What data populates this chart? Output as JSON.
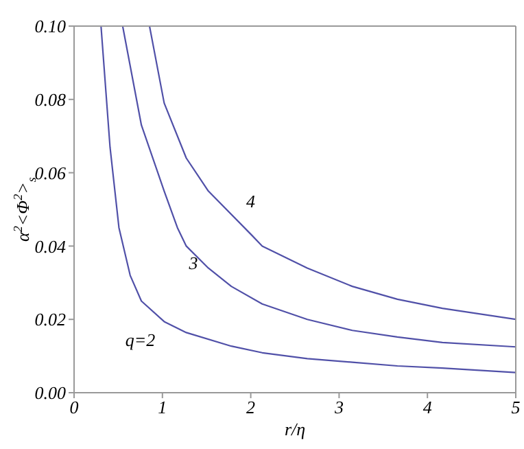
{
  "chart_data": {
    "type": "line",
    "xlabel": "r/η",
    "ylabel": "α$^{2}$<Φ$^{2}$>$_{s}$",
    "xlim": [
      0,
      5
    ],
    "xticks": [
      0,
      1,
      2,
      3,
      4,
      5
    ],
    "ylim": [
      0,
      0.1
    ],
    "yticks": [
      {
        "value": 0,
        "label": "0.00"
      },
      {
        "value": 0.02,
        "label": "0.02"
      },
      {
        "value": 0.04,
        "label": "0.04"
      },
      {
        "value": 0.06,
        "label": "0.06"
      },
      {
        "value": 0.08,
        "label": "0.08"
      },
      {
        "value": 0.1,
        "label": "0.10"
      }
    ],
    "legend": false,
    "marker": "none",
    "line_style": "solid",
    "series": [
      {
        "name": "q=2",
        "color": "#5050a8",
        "x": [
          0.305,
          0.407,
          0.508,
          0.635,
          0.762,
          1.02,
          1.27,
          1.78,
          2.13,
          2.64,
          3.15,
          3.66,
          4.17,
          5
        ],
        "values": [
          0.1,
          0.067,
          0.045,
          0.032,
          0.025,
          0.0194,
          0.0164,
          0.0127,
          0.0109,
          0.0093,
          0.0083,
          0.0073,
          0.0067,
          0.0055
        ]
      },
      {
        "name": "3",
        "color": "#5050a8",
        "x": [
          0.55,
          0.762,
          1.02,
          1.17,
          1.27,
          1.52,
          1.78,
          2.13,
          2.64,
          3.15,
          3.66,
          4.17,
          5
        ],
        "values": [
          0.1,
          0.073,
          0.055,
          0.045,
          0.04,
          0.034,
          0.029,
          0.0242,
          0.02,
          0.017,
          0.0152,
          0.0137,
          0.0125
        ]
      },
      {
        "name": "4",
        "color": "#5050a8",
        "x": [
          0.854,
          1.02,
          1.27,
          1.52,
          2.01,
          2.13,
          2.64,
          3.15,
          3.66,
          4.17,
          5
        ],
        "values": [
          0.1,
          0.079,
          0.064,
          0.055,
          0.043,
          0.04,
          0.034,
          0.029,
          0.0255,
          0.023,
          0.02
        ]
      }
    ]
  }
}
